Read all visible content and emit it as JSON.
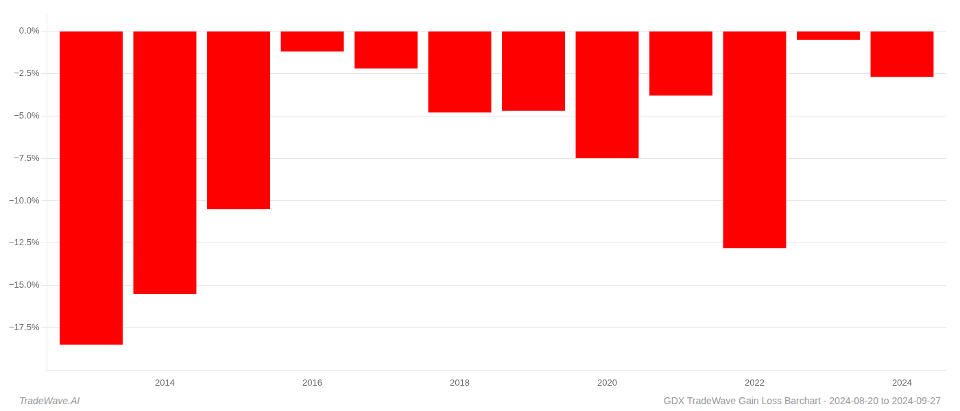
{
  "chart_data": {
    "type": "bar",
    "x": [
      2013,
      2014,
      2015,
      2016,
      2017,
      2018,
      2019,
      2020,
      2021,
      2022,
      2023,
      2024
    ],
    "values": [
      -18.5,
      -15.5,
      -10.5,
      -1.2,
      -2.2,
      -4.8,
      -4.7,
      -7.5,
      -3.8,
      -12.8,
      -0.5,
      -2.7
    ],
    "color": "#ff0000",
    "xlim": [
      2012.4,
      2024.6
    ],
    "xticks": [
      2014,
      2016,
      2018,
      2020,
      2022,
      2024
    ],
    "ylim": [
      -20.0,
      1.0
    ],
    "yticks": [
      {
        "value": 0.0,
        "label": "0.0%"
      },
      {
        "value": -2.5,
        "label": "−2.5%"
      },
      {
        "value": -5.0,
        "label": "−5.0%"
      },
      {
        "value": -7.5,
        "label": "−7.5%"
      },
      {
        "value": -10.0,
        "label": "−10.0%"
      },
      {
        "value": -12.5,
        "label": "−12.5%"
      },
      {
        "value": -15.0,
        "label": "−15.0%"
      },
      {
        "value": -17.5,
        "label": "−17.5%"
      }
    ],
    "grid": true,
    "annotations": [
      "TradeWave.AI",
      "GDX TradeWave Gain Loss Barchart - 2024-08-20 to 2024-09-27"
    ]
  }
}
